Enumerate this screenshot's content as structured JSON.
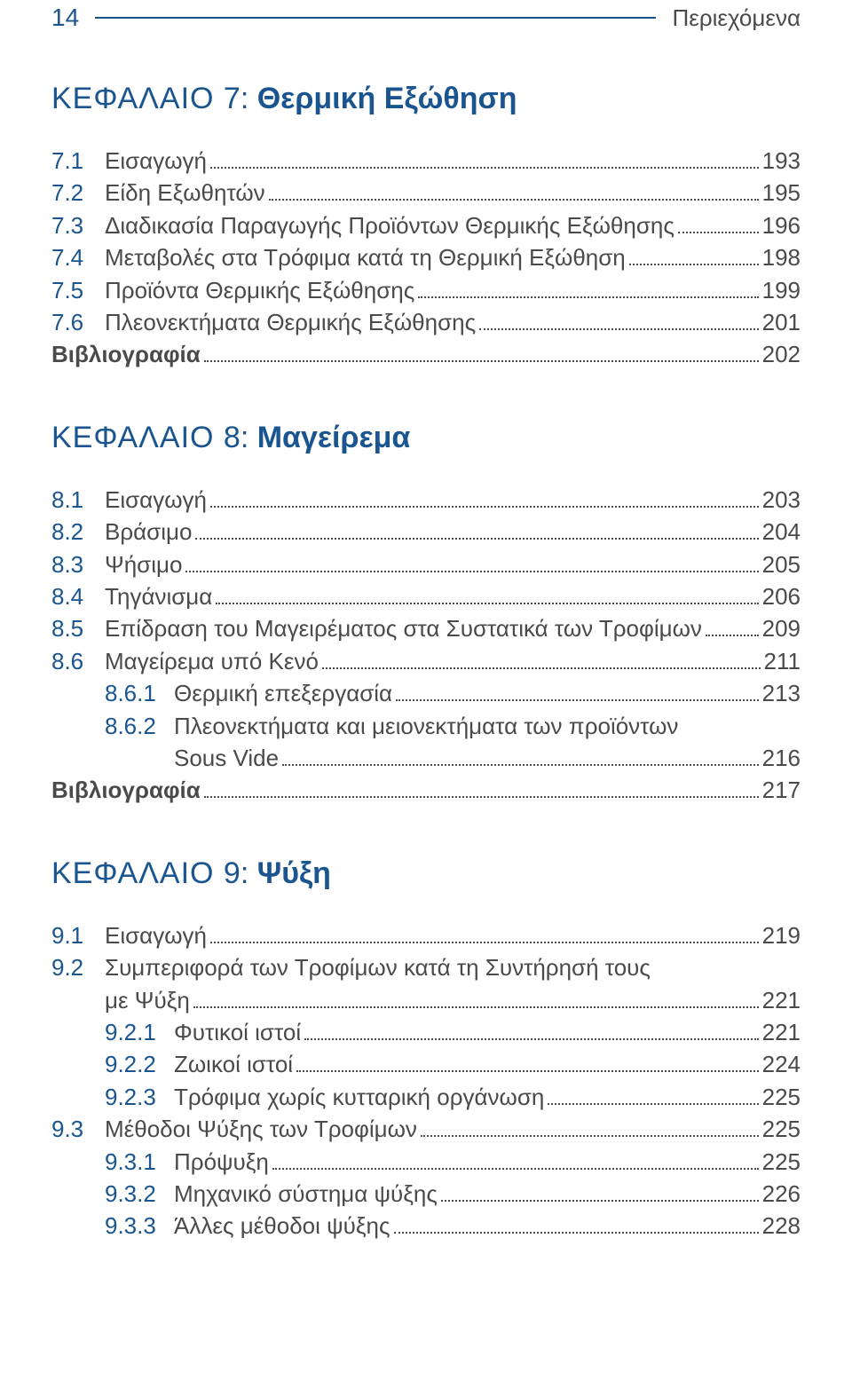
{
  "header": {
    "page_number": "14",
    "title": "Περιεχόμενα"
  },
  "chapters": [
    {
      "chapter_word": "ΚΕΦΑΛΑΙΟ",
      "chapter_num": "7:",
      "chapter_name": "Θερμική Εξώθηση",
      "entries": [
        {
          "num": "7.1",
          "label": "Εισαγωγή",
          "page": "193",
          "level": 0
        },
        {
          "num": "7.2",
          "label": "Είδη Εξωθητών",
          "page": "195",
          "level": 0
        },
        {
          "num": "7.3",
          "label": "Διαδικασία Παραγωγής Προϊόντων Θερμικής Εξώθησης",
          "page": "196",
          "level": 0
        },
        {
          "num": "7.4",
          "label": "Μεταβολές στα Τρόφιμα κατά τη Θερμική Εξώθηση",
          "page": "198",
          "level": 0
        },
        {
          "num": "7.5",
          "label": "Προϊόντα Θερμικής Εξώθησης",
          "page": "199",
          "level": 0
        },
        {
          "num": "7.6",
          "label": "Πλεονεκτήματα Θερμικής Εξώθησης",
          "page": "201",
          "level": 0
        },
        {
          "num": "",
          "label": "Βιβλιογραφία",
          "page": "202",
          "level": 0,
          "bold": true
        }
      ]
    },
    {
      "chapter_word": "ΚΕΦΑΛΑΙΟ",
      "chapter_num": "8:",
      "chapter_name": "Μαγείρεμα",
      "entries": [
        {
          "num": "8.1",
          "label": "Εισαγωγή",
          "page": "203",
          "level": 0
        },
        {
          "num": "8.2",
          "label": "Βράσιμο",
          "page": "204",
          "level": 0
        },
        {
          "num": "8.3",
          "label": "Ψήσιμο",
          "page": "205",
          "level": 0
        },
        {
          "num": "8.4",
          "label": "Τηγάνισμα",
          "page": "206",
          "level": 0
        },
        {
          "num": "8.5",
          "label": "Επίδραση του Μαγειρέματος στα Συστατικά των Τροφίμων",
          "page": "209",
          "level": 0
        },
        {
          "num": "8.6",
          "label": "Μαγείρεμα υπό Κενό",
          "page": "211",
          "level": 0
        },
        {
          "num": "8.6.1",
          "label": "Θερμική επεξεργασία",
          "page": "213",
          "level": 1
        },
        {
          "num": "8.6.2",
          "label_lines": [
            "Πλεονεκτήματα και μειονεκτήματα των προϊόντων",
            "Sous Vide"
          ],
          "page": "216",
          "level": 1
        },
        {
          "num": "",
          "label": "Βιβλιογραφία",
          "page": "217",
          "level": 0,
          "bold": true
        }
      ]
    },
    {
      "chapter_word": "ΚΕΦΑΛΑΙΟ",
      "chapter_num": "9:",
      "chapter_name": "Ψύξη",
      "entries": [
        {
          "num": "9.1",
          "label": "Εισαγωγή",
          "page": "219",
          "level": 0
        },
        {
          "num": "9.2",
          "label_lines": [
            "Συμπεριφορά των Τροφίμων κατά τη Συντήρησή τους",
            "με Ψύξη"
          ],
          "page": "221",
          "level": 0
        },
        {
          "num": "9.2.1",
          "label": "Φυτικοί ιστοί",
          "page": "221",
          "level": 1
        },
        {
          "num": "9.2.2",
          "label": "Ζωικοί ιστοί",
          "page": "224",
          "level": 1
        },
        {
          "num": "9.2.3",
          "label": "Τρόφιμα χωρίς κυτταρική οργάνωση",
          "page": "225",
          "level": 1
        },
        {
          "num": "9.3",
          "label": "Μέθοδοι Ψύξης των Τροφίμων",
          "page": "225",
          "level": 0
        },
        {
          "num": "9.3.1",
          "label": "Πρόψυξη",
          "page": "225",
          "level": 1
        },
        {
          "num": "9.3.2",
          "label": "Μηχανικό σύστημα ψύξης",
          "page": "226",
          "level": 1
        },
        {
          "num": "9.3.3",
          "label": "Άλλες μέθοδοι ψύξης",
          "page": "228",
          "level": 1
        }
      ]
    }
  ]
}
